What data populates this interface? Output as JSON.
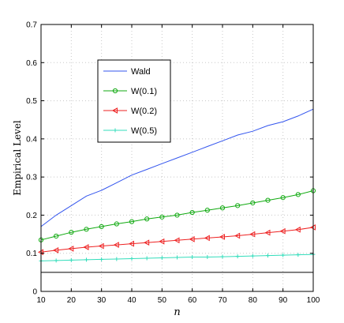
{
  "chart_data": {
    "type": "line",
    "xlabel": "n",
    "ylabel": "Empirical Level",
    "xlim": [
      10,
      100
    ],
    "ylim": [
      0,
      0.7
    ],
    "xticks": [
      10,
      20,
      30,
      40,
      50,
      60,
      70,
      80,
      90,
      100
    ],
    "yticks": [
      0,
      0.1,
      0.2,
      0.3,
      0.4,
      0.5,
      0.6,
      0.7
    ],
    "grid": true,
    "legend_position": "upper-left",
    "reference_line": {
      "y": 0.05,
      "color": "#000000"
    },
    "series": [
      {
        "name": "Wald",
        "color": "#3355ee",
        "marker": "none",
        "x": [
          10,
          15,
          20,
          25,
          30,
          35,
          40,
          45,
          50,
          55,
          60,
          65,
          70,
          75,
          80,
          85,
          90,
          95,
          100
        ],
        "y": [
          0.17,
          0.2,
          0.225,
          0.25,
          0.265,
          0.285,
          0.305,
          0.32,
          0.335,
          0.35,
          0.365,
          0.38,
          0.395,
          0.41,
          0.42,
          0.435,
          0.445,
          0.46,
          0.478
        ]
      },
      {
        "name": "W(0.1)",
        "color": "#11aa11",
        "marker": "circle",
        "x": [
          10,
          15,
          20,
          25,
          30,
          35,
          40,
          45,
          50,
          55,
          60,
          65,
          70,
          75,
          80,
          85,
          90,
          95,
          100
        ],
        "y": [
          0.135,
          0.145,
          0.155,
          0.163,
          0.17,
          0.177,
          0.183,
          0.19,
          0.195,
          0.2,
          0.207,
          0.213,
          0.219,
          0.225,
          0.232,
          0.239,
          0.246,
          0.254,
          0.264
        ]
      },
      {
        "name": "W(0.2)",
        "color": "#ee2222",
        "marker": "triangle-left",
        "x": [
          10,
          15,
          20,
          25,
          30,
          35,
          40,
          45,
          50,
          55,
          60,
          65,
          70,
          75,
          80,
          85,
          90,
          95,
          100
        ],
        "y": [
          0.103,
          0.108,
          0.112,
          0.116,
          0.119,
          0.122,
          0.125,
          0.128,
          0.131,
          0.134,
          0.137,
          0.14,
          0.143,
          0.146,
          0.15,
          0.154,
          0.158,
          0.162,
          0.168
        ]
      },
      {
        "name": "W(0.5)",
        "color": "#33ddbb",
        "marker": "plus",
        "x": [
          10,
          15,
          20,
          25,
          30,
          35,
          40,
          45,
          50,
          55,
          60,
          65,
          70,
          75,
          80,
          85,
          90,
          95,
          100
        ],
        "y": [
          0.08,
          0.081,
          0.082,
          0.083,
          0.084,
          0.085,
          0.086,
          0.087,
          0.088,
          0.089,
          0.09,
          0.09,
          0.091,
          0.092,
          0.093,
          0.094,
          0.095,
          0.096,
          0.097
        ]
      }
    ]
  }
}
